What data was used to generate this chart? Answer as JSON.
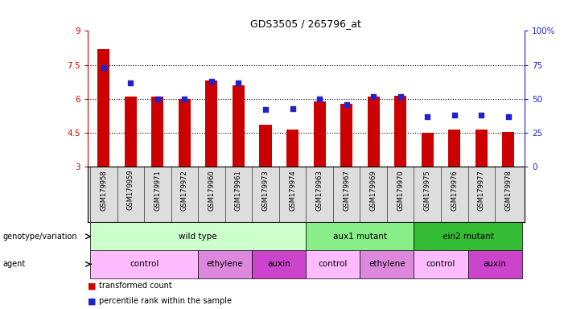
{
  "title": "GDS3505 / 265796_at",
  "samples": [
    "GSM179958",
    "GSM179959",
    "GSM179971",
    "GSM179972",
    "GSM179960",
    "GSM179961",
    "GSM179973",
    "GSM179974",
    "GSM179963",
    "GSM179967",
    "GSM179969",
    "GSM179970",
    "GSM179975",
    "GSM179976",
    "GSM179977",
    "GSM179978"
  ],
  "bar_values": [
    8.2,
    6.1,
    6.1,
    6.0,
    6.8,
    6.6,
    4.85,
    4.65,
    5.9,
    5.8,
    6.1,
    6.15,
    4.5,
    4.65,
    4.65,
    4.55
  ],
  "blue_values": [
    73,
    62,
    50,
    50,
    63,
    62,
    42,
    43,
    50,
    46,
    52,
    52,
    37,
    38,
    38,
    37
  ],
  "ylim_left": [
    3,
    9
  ],
  "ylim_right": [
    0,
    100
  ],
  "yticks_left": [
    3,
    4.5,
    6,
    7.5,
    9
  ],
  "yticks_right": [
    0,
    25,
    50,
    75,
    100
  ],
  "bar_color": "#cc0000",
  "blue_color": "#2222cc",
  "bar_base": 3,
  "genotype_groups": [
    {
      "label": "wild type",
      "start": 0,
      "end": 7,
      "color": "#ccffcc"
    },
    {
      "label": "aux1 mutant",
      "start": 8,
      "end": 11,
      "color": "#88ee88"
    },
    {
      "label": "ein2 mutant",
      "start": 12,
      "end": 15,
      "color": "#33bb33"
    }
  ],
  "agent_groups": [
    {
      "label": "control",
      "start": 0,
      "end": 3,
      "color": "#ffbbff"
    },
    {
      "label": "ethylene",
      "start": 4,
      "end": 5,
      "color": "#dd88dd"
    },
    {
      "label": "auxin",
      "start": 6,
      "end": 7,
      "color": "#cc44cc"
    },
    {
      "label": "control",
      "start": 8,
      "end": 9,
      "color": "#ffbbff"
    },
    {
      "label": "ethylene",
      "start": 10,
      "end": 11,
      "color": "#dd88dd"
    },
    {
      "label": "control",
      "start": 12,
      "end": 13,
      "color": "#ffbbff"
    },
    {
      "label": "auxin",
      "start": 14,
      "end": 15,
      "color": "#cc44cc"
    }
  ]
}
